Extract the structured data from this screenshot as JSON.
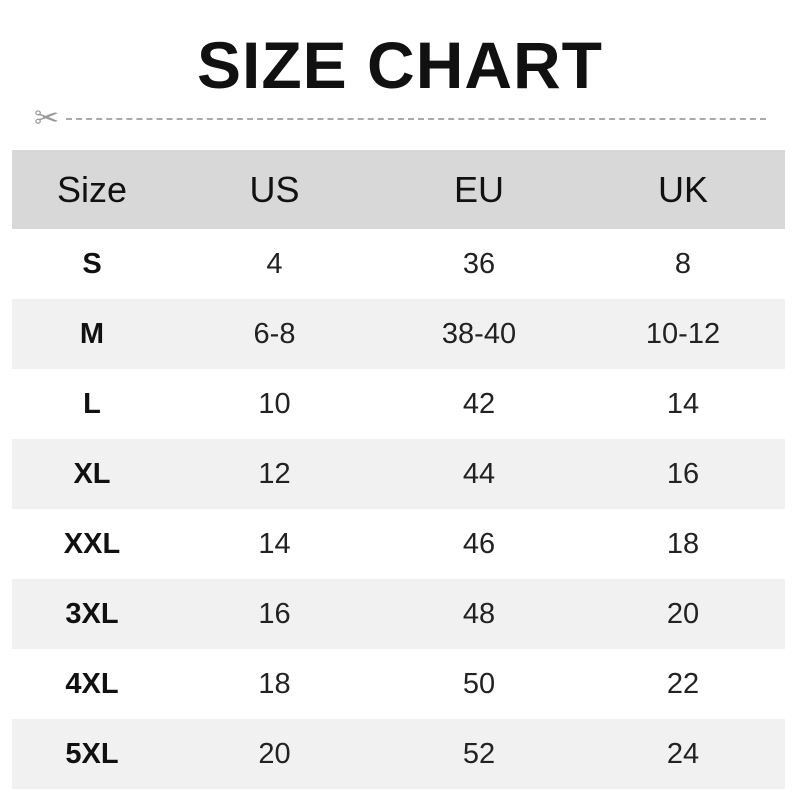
{
  "title": "SIZE CHART",
  "icons": {
    "cut_line": "scissors-icon"
  },
  "colors": {
    "header_bg": "#d8d8d8",
    "stripe_bg": "#f1f1f1"
  },
  "chart_data": {
    "type": "table",
    "columns": [
      "Size",
      "US",
      "EU",
      "UK"
    ],
    "rows": [
      [
        "S",
        "4",
        "36",
        "8"
      ],
      [
        "M",
        "6-8",
        "38-40",
        "10-12"
      ],
      [
        "L",
        "10",
        "42",
        "14"
      ],
      [
        "XL",
        "12",
        "44",
        "16"
      ],
      [
        "XXL",
        "14",
        "46",
        "18"
      ],
      [
        "3XL",
        "16",
        "48",
        "20"
      ],
      [
        "4XL",
        "18",
        "50",
        "22"
      ],
      [
        "5XL",
        "20",
        "52",
        "24"
      ]
    ]
  }
}
